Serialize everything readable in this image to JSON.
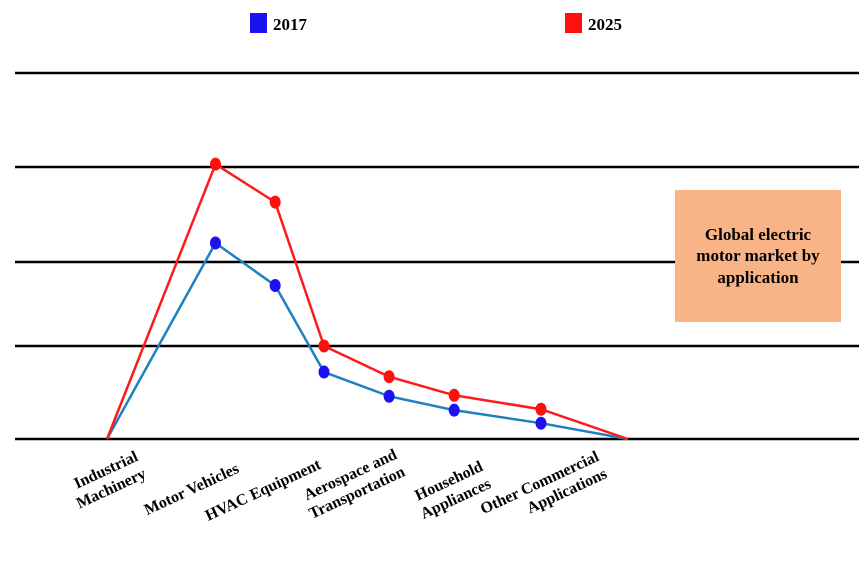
{
  "chart_data": {
    "type": "line",
    "categories": [
      "Industrial Machinery",
      "Motor Vehicles",
      "HVAC Equipment",
      "Aerospace and Transportation",
      "Household Appliances",
      "Other Commercial Applications"
    ],
    "category_label_lines": [
      [
        "Industrial",
        "Machinery"
      ],
      [
        "Motor Vehicles"
      ],
      [
        "HVAC Equipment"
      ],
      [
        "Aerospace and",
        "Transportation"
      ],
      [
        "Household",
        "Appliances"
      ],
      [
        "Other Commercial",
        "Applications"
      ]
    ],
    "series": [
      {
        "name": "2017",
        "line_color": "#1f7fc0",
        "marker_color": "#1c12ee",
        "points": [
          [
            0,
            0
          ],
          [
            1.0,
            2.2
          ],
          [
            1.55,
            1.72
          ],
          [
            2.0,
            0.72
          ],
          [
            2.6,
            0.46
          ],
          [
            3.2,
            0.31
          ],
          [
            4.0,
            0.17
          ],
          [
            4.8,
            0.0
          ]
        ]
      },
      {
        "name": "2025",
        "line_color": "#ff1a1a",
        "marker_color": "#ff1010",
        "points": [
          [
            0,
            0
          ],
          [
            1.0,
            3.03
          ],
          [
            1.55,
            2.63
          ],
          [
            2.0,
            1.0
          ],
          [
            2.6,
            0.67
          ],
          [
            3.2,
            0.47
          ],
          [
            4.0,
            0.32
          ],
          [
            4.8,
            0.0
          ]
        ]
      }
    ],
    "gridlines_y": [
      0,
      1,
      2,
      3,
      4
    ],
    "ylim": [
      0,
      4
    ],
    "grid": true,
    "legend_position": "top"
  },
  "annotation": {
    "lines": [
      "Global electric",
      "motor market by",
      "application"
    ],
    "color": "#f8b487"
  }
}
